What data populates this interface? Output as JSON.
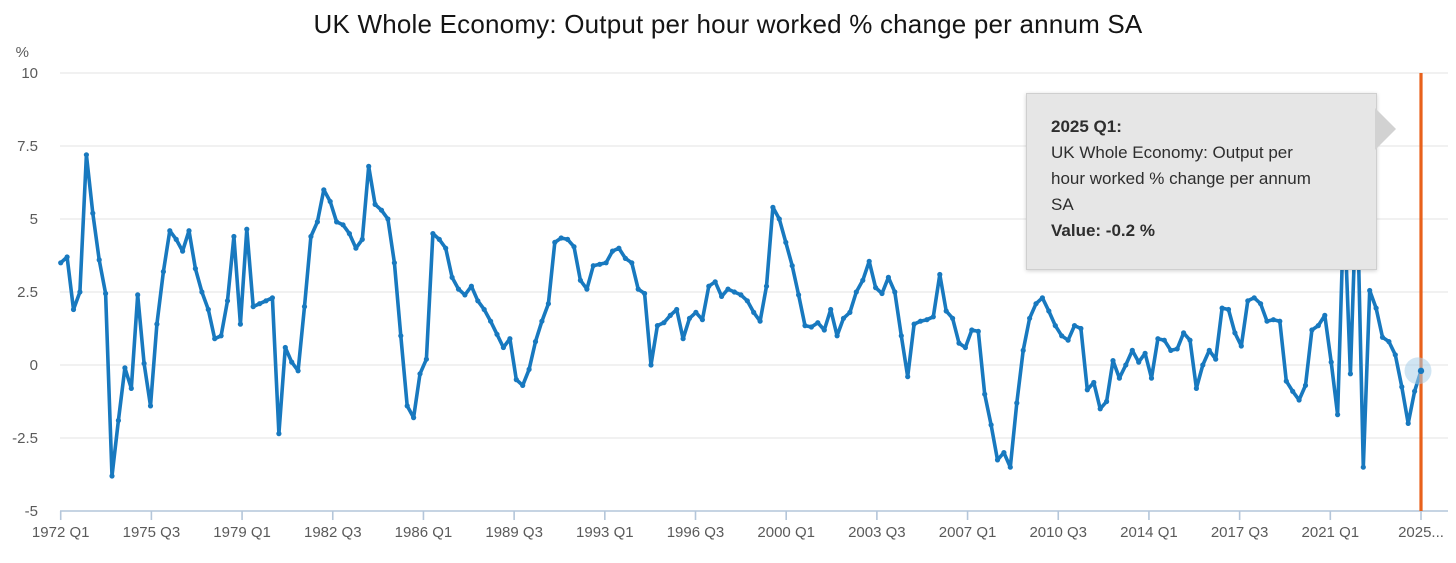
{
  "title": "UK Whole Economy: Output per hour worked % change per annum SA",
  "tooltip": {
    "heading": "2025 Q1:",
    "body": "UK Whole Economy: Output per hour worked % change per annum SA",
    "value_label": "Value: -0.2 %"
  },
  "colors": {
    "line": "#1879bf",
    "crosshair": "#e8611b",
    "highlight": "#a9cfe9",
    "grid": "#e3e3e3",
    "axis": "#b4c6da",
    "tick_text": "#5a5a5a",
    "title_text": "#151515",
    "tooltip_bg": "#e6e6e6"
  },
  "chart_data": {
    "type": "line",
    "title": "UK Whole Economy: Output per hour worked % change per annum SA",
    "frequency": "quarterly",
    "x_start": "1972 Q1",
    "x_end": "2025 Q1",
    "xlabel": "",
    "ylabel": "%",
    "ylim": [
      -5,
      10
    ],
    "grid": "horizontal",
    "legend": "none",
    "y_tick_labels": [
      "10",
      "7.5",
      "5",
      "2.5",
      "0",
      "-2.5",
      "-5"
    ],
    "x_tick_labels": [
      "1972 Q1",
      "1975 Q3",
      "1979 Q1",
      "1982 Q3",
      "1986 Q1",
      "1989 Q3",
      "1993 Q1",
      "1996 Q3",
      "2000 Q1",
      "2003 Q3",
      "2007 Q1",
      "2010 Q3",
      "2014 Q1",
      "2017 Q3",
      "2021 Q1",
      "2025..."
    ],
    "highlighted_point": {
      "x": "2025 Q1",
      "value": -0.2
    },
    "series": [
      {
        "name": "UK Whole Economy: Output per hour worked % change per annum SA",
        "values": [
          3.5,
          3.7,
          1.9,
          2.5,
          7.2,
          5.2,
          3.6,
          2.45,
          -3.8,
          -1.9,
          -0.1,
          -0.8,
          2.4,
          0.05,
          -1.4,
          1.4,
          3.2,
          4.6,
          4.3,
          3.9,
          4.6,
          3.3,
          2.5,
          1.9,
          0.9,
          1.0,
          2.2,
          4.4,
          1.4,
          4.65,
          2.0,
          2.1,
          2.2,
          2.3,
          -2.35,
          0.6,
          0.1,
          -0.2,
          2.0,
          4.4,
          4.9,
          6.0,
          5.6,
          4.9,
          4.8,
          4.5,
          4.0,
          4.3,
          6.8,
          5.5,
          5.3,
          5.0,
          3.5,
          1.0,
          -1.4,
          -1.8,
          -0.3,
          0.2,
          4.5,
          4.3,
          4.0,
          3.0,
          2.6,
          2.4,
          2.7,
          2.2,
          1.9,
          1.5,
          1.05,
          0.6,
          0.9,
          -0.5,
          -0.7,
          -0.15,
          0.8,
          1.5,
          2.1,
          4.2,
          4.35,
          4.3,
          4.05,
          2.9,
          2.6,
          3.4,
          3.45,
          3.5,
          3.9,
          4.0,
          3.65,
          3.5,
          2.6,
          2.45,
          0.0,
          1.35,
          1.45,
          1.7,
          1.9,
          0.9,
          1.6,
          1.8,
          1.55,
          2.7,
          2.85,
          2.35,
          2.6,
          2.5,
          2.4,
          2.2,
          1.8,
          1.5,
          2.7,
          5.4,
          5.0,
          4.2,
          3.4,
          2.4,
          1.35,
          1.3,
          1.45,
          1.2,
          1.9,
          1.0,
          1.6,
          1.8,
          2.5,
          2.9,
          3.55,
          2.65,
          2.45,
          3.0,
          2.5,
          1.0,
          -0.4,
          1.4,
          1.5,
          1.55,
          1.65,
          3.1,
          1.85,
          1.6,
          0.75,
          0.6,
          1.2,
          1.15,
          -1.0,
          -2.05,
          -3.25,
          -3.0,
          -3.5,
          -1.3,
          0.5,
          1.6,
          2.1,
          2.3,
          1.85,
          1.35,
          1.0,
          0.85,
          1.35,
          1.25,
          -0.85,
          -0.6,
          -1.5,
          -1.25,
          0.15,
          -0.45,
          0.0,
          0.5,
          0.1,
          0.4,
          -0.45,
          0.9,
          0.85,
          0.5,
          0.55,
          1.1,
          0.85,
          -0.8,
          0.0,
          0.5,
          0.2,
          1.95,
          1.9,
          1.1,
          0.65,
          2.2,
          2.3,
          2.1,
          1.5,
          1.55,
          1.5,
          -0.55,
          -0.9,
          -1.2,
          -0.7,
          1.2,
          1.35,
          1.7,
          0.1,
          -1.7,
          5.5,
          -0.3,
          6.3,
          -3.5,
          2.55,
          1.95,
          0.95,
          0.8,
          0.35,
          -0.75,
          -2.0,
          -0.9,
          -0.2
        ]
      }
    ]
  }
}
